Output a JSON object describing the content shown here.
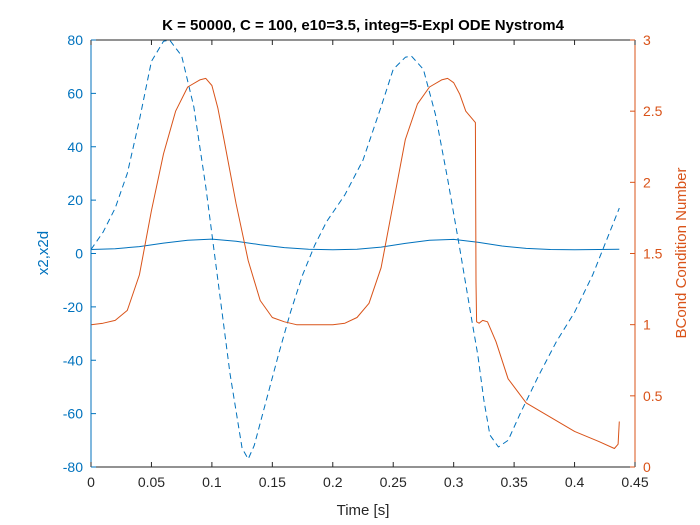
{
  "chart_data": {
    "type": "line",
    "title": "K = 50000, C = 100, e10=3.5, integ=5-Expl ODE Nystrom4",
    "xlabel": "Time [s]",
    "ylabel_left": "x2,x2d",
    "ylabel_right": "BCond Condition Number",
    "xlim": [
      0,
      0.45
    ],
    "ylim_left": [
      -80,
      80
    ],
    "ylim_right": [
      0,
      3
    ],
    "xticks": [
      "0",
      "0.05",
      "0.1",
      "0.15",
      "0.2",
      "0.25",
      "0.3",
      "0.35",
      "0.4",
      "0.45"
    ],
    "yticks_left": [
      "-80",
      "-60",
      "-40",
      "-20",
      "0",
      "20",
      "40",
      "60",
      "80"
    ],
    "yticks_right": [
      "0",
      "0.5",
      "1",
      "1.5",
      "2",
      "2.5",
      "3"
    ],
    "grid": false,
    "colors": {
      "left_axis": "#0072BD",
      "right_axis": "#D95319",
      "box": "#262626"
    },
    "series": [
      {
        "axis": "left",
        "style": "solid",
        "color": "#0072BD",
        "x": [
          0,
          0.02,
          0.04,
          0.06,
          0.08,
          0.1,
          0.12,
          0.14,
          0.16,
          0.18,
          0.2,
          0.22,
          0.24,
          0.26,
          0.28,
          0.3,
          0.32,
          0.34,
          0.36,
          0.38,
          0.4,
          0.42,
          0.437
        ],
        "y": [
          1.5,
          1.8,
          2.6,
          3.9,
          5.0,
          5.4,
          4.6,
          3.3,
          2.2,
          1.6,
          1.4,
          1.6,
          2.4,
          3.8,
          5.0,
          5.3,
          4.2,
          2.8,
          1.9,
          1.5,
          1.4,
          1.5,
          1.6
        ]
      },
      {
        "axis": "left",
        "style": "dashed",
        "color": "#0072BD",
        "x": [
          0,
          0.01,
          0.02,
          0.03,
          0.04,
          0.05,
          0.06,
          0.065,
          0.075,
          0.085,
          0.095,
          0.105,
          0.115,
          0.125,
          0.13,
          0.135,
          0.145,
          0.155,
          0.165,
          0.175,
          0.185,
          0.195,
          0.21,
          0.225,
          0.24,
          0.25,
          0.26,
          0.265,
          0.275,
          0.285,
          0.295,
          0.305,
          0.315,
          0.32,
          0.325,
          0.33,
          0.337,
          0.345,
          0.355,
          0.37,
          0.385,
          0.4,
          0.415,
          0.437
        ],
        "y": [
          1.5,
          8,
          17,
          30,
          50,
          72,
          79.5,
          80,
          74,
          55,
          25,
          -10,
          -45,
          -73,
          -77,
          -72,
          -55,
          -38,
          -22,
          -8,
          3,
          12,
          22,
          35,
          55,
          69,
          73.5,
          74,
          69,
          52,
          28,
          2,
          -25,
          -38,
          -55,
          -68,
          -72.5,
          -70,
          -60,
          -46,
          -33,
          -22,
          -8,
          17
        ]
      },
      {
        "axis": "right",
        "style": "solid",
        "color": "#D95319",
        "x": [
          0,
          0.01,
          0.02,
          0.03,
          0.04,
          0.05,
          0.06,
          0.07,
          0.08,
          0.09,
          0.095,
          0.1,
          0.105,
          0.11,
          0.12,
          0.13,
          0.14,
          0.15,
          0.16,
          0.17,
          0.18,
          0.19,
          0.2,
          0.21,
          0.22,
          0.23,
          0.24,
          0.25,
          0.26,
          0.27,
          0.28,
          0.29,
          0.295,
          0.3,
          0.305,
          0.31,
          0.318,
          0.3185,
          0.319,
          0.321,
          0.324,
          0.328,
          0.335,
          0.345,
          0.36,
          0.38,
          0.4,
          0.42,
          0.433,
          0.436,
          0.437
        ],
        "y": [
          1.0,
          1.01,
          1.03,
          1.1,
          1.35,
          1.8,
          2.2,
          2.5,
          2.67,
          2.72,
          2.73,
          2.68,
          2.52,
          2.3,
          1.85,
          1.45,
          1.17,
          1.05,
          1.02,
          1.0,
          1.0,
          1.0,
          1.0,
          1.01,
          1.05,
          1.15,
          1.4,
          1.85,
          2.3,
          2.55,
          2.67,
          2.72,
          2.73,
          2.7,
          2.62,
          2.5,
          2.42,
          1.3,
          1.02,
          1.01,
          1.03,
          1.02,
          0.88,
          0.62,
          0.45,
          0.35,
          0.25,
          0.18,
          0.13,
          0.16,
          0.32
        ]
      }
    ]
  }
}
